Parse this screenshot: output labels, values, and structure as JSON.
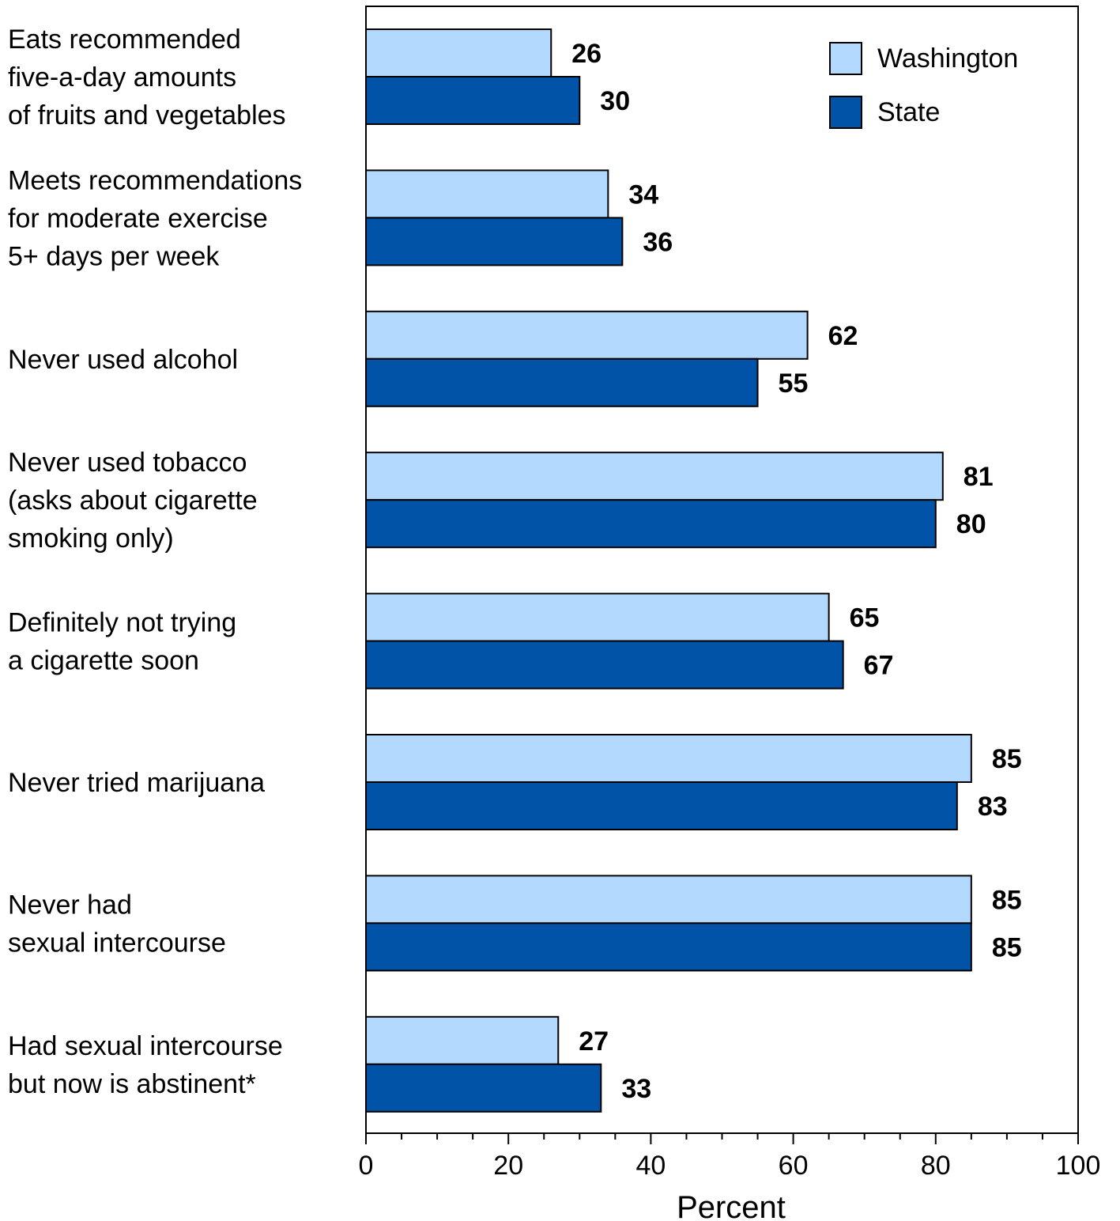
{
  "chart_data": {
    "type": "bar",
    "orientation": "horizontal",
    "title": "",
    "xlabel": "Percent",
    "ylabel": "",
    "xlim": [
      0,
      100
    ],
    "xticks": [
      0,
      20,
      40,
      60,
      80,
      100
    ],
    "grid": false,
    "legend_position": "top-right",
    "categories": [
      [
        "Eats recommended",
        "five-a-day amounts",
        "of fruits and vegetables"
      ],
      [
        "Meets recommendations",
        "for moderate exercise",
        "5+ days per week"
      ],
      [
        "Never used alcohol"
      ],
      [
        "Never used tobacco",
        "(asks about cigarette",
        "smoking only)"
      ],
      [
        "Definitely not trying",
        "a cigarette soon"
      ],
      [
        "Never tried marijuana"
      ],
      [
        "Never had",
        "sexual intercourse"
      ],
      [
        "Had sexual intercourse",
        "but now is abstinent*"
      ]
    ],
    "series": [
      {
        "name": "Washington",
        "color": "#b3d9ff",
        "values": [
          26,
          34,
          62,
          81,
          65,
          85,
          85,
          27
        ]
      },
      {
        "name": "State",
        "color": "#0053a6",
        "values": [
          30,
          36,
          55,
          80,
          67,
          83,
          85,
          33
        ]
      }
    ]
  }
}
